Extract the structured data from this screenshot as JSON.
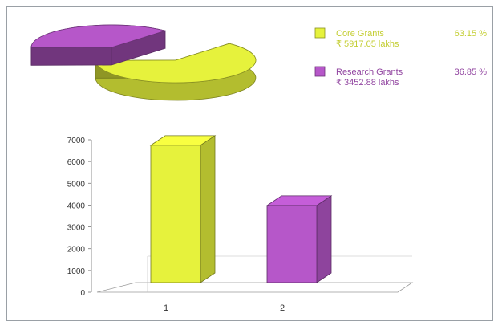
{
  "chart_data": [
    {
      "type": "pie",
      "slices": [
        {
          "label": "Core Grants",
          "sublabel": "₹ 5917.05 lakhs",
          "percent": "63.15 %",
          "value": 63.15,
          "color": "#e6f23c"
        },
        {
          "label": "Research Grants",
          "sublabel": "₹ 3452.88 lakhs",
          "percent": "36.85 %",
          "value": 36.85,
          "color": "#b657c9"
        }
      ],
      "legend_position": "right"
    },
    {
      "type": "bar",
      "categories": [
        "1",
        "2"
      ],
      "series": [
        {
          "values": [
            6500,
            3650
          ],
          "colors": [
            "#e6f23c",
            "#b657c9"
          ]
        }
      ],
      "ylim": [
        0,
        7000
      ],
      "yticks": [
        "0",
        "1000",
        "2000",
        "3000",
        "4000",
        "5000",
        "6000",
        "7000"
      ],
      "style": "3d",
      "grid": false
    }
  ]
}
